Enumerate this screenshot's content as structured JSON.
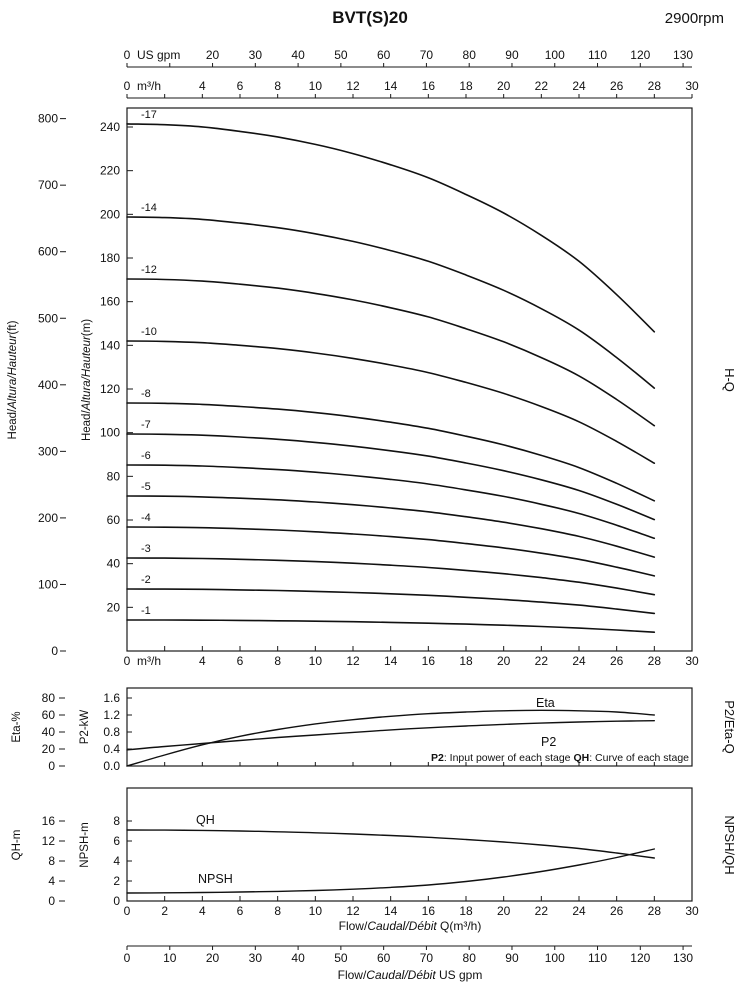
{
  "header": {
    "title": "BVT(S)20",
    "rpm": "2900rpm"
  },
  "labels": {
    "usgpm_unit": "US gpm",
    "m3h_unit": "m³/h",
    "head_a": "Head/",
    "head_b": "Altura/Hauteur",
    "head_ft_suffix": "(ft)",
    "head_m_suffix": "(m)",
    "eta_axis": "Eta-%",
    "p2_axis": "P2-kW",
    "qh_axis": "QH-m",
    "npsh_axis": "NPSH-m",
    "flow_a": "Flow/",
    "flow_b": "Caudal/Débit",
    "flow_q_suffix": " Q(m³/h)",
    "flow_gpm_suffix": "  US gpm",
    "eta_curve": "Eta",
    "p2_curve": "P2",
    "qh_curve": "QH",
    "npsh_curve": "NPSH"
  },
  "chart_data": {
    "type": "line",
    "title": "BVT(S)20",
    "subtitle": "2900rpm",
    "x_m3h": [
      0,
      2,
      4,
      6,
      8,
      10,
      12,
      14,
      16,
      18,
      20,
      22,
      24,
      26,
      28
    ],
    "axes": {
      "gpm_all": [
        0,
        10,
        20,
        30,
        40,
        50,
        60,
        70,
        80,
        90,
        100,
        110,
        120,
        130
      ],
      "gpm_labeled": [
        0,
        20,
        30,
        40,
        50,
        60,
        70,
        80,
        90,
        100,
        110,
        120,
        130
      ],
      "m3h_all": [
        0,
        2,
        4,
        6,
        8,
        10,
        12,
        14,
        16,
        18,
        20,
        22,
        24,
        26,
        28,
        30
      ],
      "m3h_labeled": [
        0,
        4,
        6,
        8,
        10,
        12,
        14,
        16,
        18,
        20,
        22,
        24,
        26,
        28,
        30
      ],
      "bottom_x_labeled": [
        0,
        2,
        4,
        6,
        8,
        10,
        12,
        14,
        16,
        18,
        20,
        22,
        24,
        26,
        28,
        30
      ],
      "gpm_bottom_labeled": [
        0,
        10,
        20,
        30,
        40,
        50,
        60,
        70,
        80,
        90,
        100,
        110,
        120,
        130
      ],
      "gpm_per_m3h": 4.4029,
      "x_range_m3h": [
        0,
        30
      ]
    },
    "hq_panel": {
      "name": "H-Q",
      "ylim_m": [
        0,
        240
      ],
      "ylim_ft": [
        0,
        800
      ],
      "m_ticks": [
        240,
        220,
        200,
        180,
        160,
        140,
        120,
        100,
        80,
        60,
        40,
        20
      ],
      "ft_ticks": [
        800,
        700,
        600,
        500,
        400,
        300,
        200,
        100,
        0
      ],
      "stages": [
        1,
        2,
        3,
        4,
        5,
        6,
        7,
        8,
        10,
        12,
        14,
        17
      ],
      "stage_curve_labels": [
        "-1",
        "-2",
        "-3",
        "-4",
        "-5",
        "-6",
        "-7",
        "-8",
        "-10",
        "-12",
        "-14",
        "-17"
      ],
      "single_stage_head_m": [
        14.2,
        14.18,
        14.12,
        14.0,
        13.85,
        13.65,
        13.4,
        13.1,
        12.75,
        12.3,
        11.8,
        11.2,
        10.5,
        9.6,
        8.6
      ]
    },
    "eta_p2_panel": {
      "name": "P2/Eta-Q",
      "eta_ylim_pct": [
        0,
        80
      ],
      "p2_ylim_kw": [
        0,
        1.6
      ],
      "eta_ticks": [
        80,
        60,
        40,
        20,
        0
      ],
      "p2_ticks": [
        "1.6",
        "1.2",
        "0.8",
        "0.4",
        "0.0"
      ],
      "eta_values_pct": [
        0,
        13,
        25,
        35,
        43,
        49.5,
        54.5,
        58.5,
        61.5,
        63.5,
        65,
        65.5,
        65,
        63.5,
        60
      ],
      "p2_values_kw": [
        0.38,
        0.46,
        0.53,
        0.6,
        0.67,
        0.73,
        0.79,
        0.85,
        0.9,
        0.94,
        0.98,
        1.01,
        1.035,
        1.055,
        1.065
      ],
      "note": {
        "p2_term": "P2",
        "p2_desc": ": Input power of each stage ",
        "qh_term": "QH",
        "qh_desc": ": Curve of each stage"
      }
    },
    "npsh_qh_panel": {
      "name": "NPSH/QH",
      "qh_ylim_m": [
        0,
        16
      ],
      "npsh_ylim_m": [
        0,
        8
      ],
      "qh_ticks": [
        16,
        12,
        8,
        4,
        0
      ],
      "npsh_ticks": [
        8,
        6,
        4,
        2,
        0
      ],
      "qh_values_m": [
        14.2,
        14.18,
        14.12,
        14.0,
        13.85,
        13.65,
        13.4,
        13.1,
        12.75,
        12.3,
        11.8,
        11.2,
        10.5,
        9.6,
        8.6
      ],
      "npsh_values_m": [
        0.8,
        0.82,
        0.85,
        0.9,
        0.96,
        1.05,
        1.18,
        1.36,
        1.6,
        1.95,
        2.4,
        2.95,
        3.6,
        4.35,
        5.2
      ]
    }
  }
}
